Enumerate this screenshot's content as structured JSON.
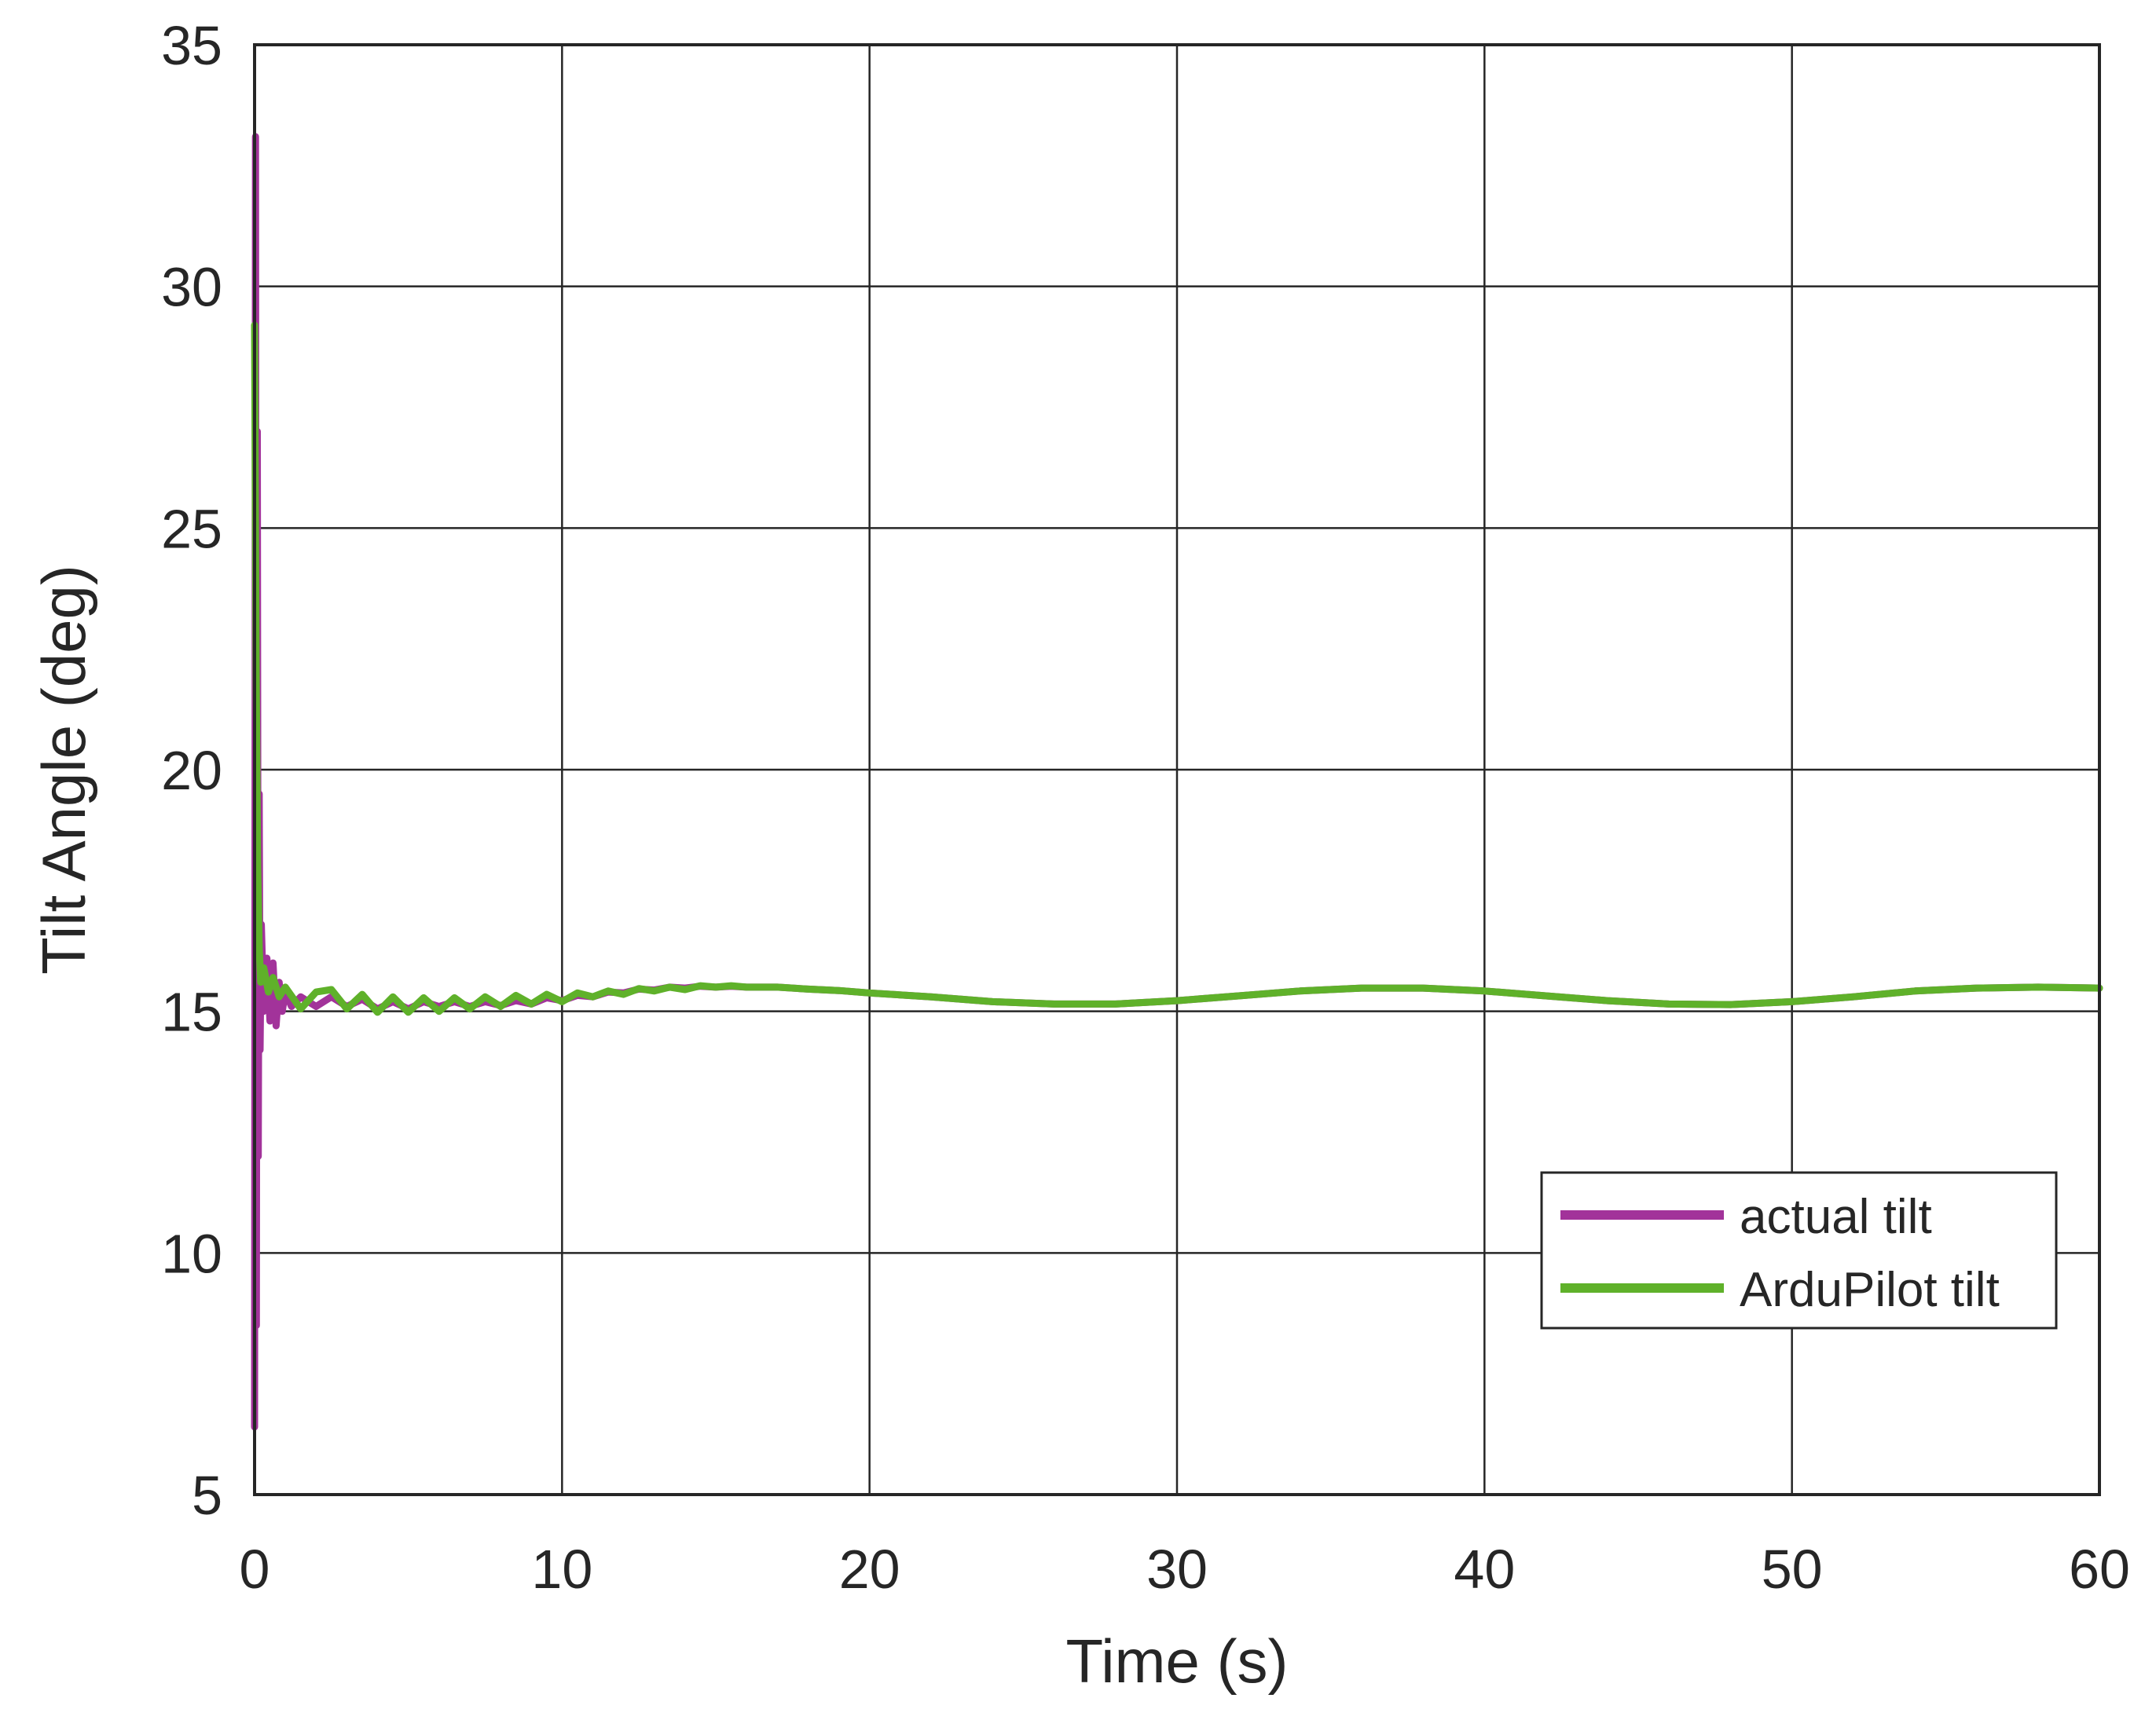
{
  "chart_data": {
    "type": "line",
    "title": "",
    "xlabel": "Time (s)",
    "ylabel": "Tilt Angle (deg)",
    "xlim": [
      0,
      60
    ],
    "ylim": [
      5,
      35
    ],
    "xticks": [
      "0",
      "10",
      "20",
      "30",
      "40",
      "50",
      "60"
    ],
    "yticks": [
      "5",
      "10",
      "15",
      "20",
      "25",
      "30",
      "35"
    ],
    "grid": true,
    "legend": {
      "placement": "lower-right"
    },
    "series": [
      {
        "name": "actual tilt",
        "color": "#a2339a",
        "x": [
          0,
          0.03,
          0.06,
          0.09,
          0.12,
          0.15,
          0.18,
          0.22,
          0.3,
          0.4,
          0.5,
          0.6,
          0.7,
          0.8,
          0.9,
          1.0,
          1.2,
          1.5,
          2.0,
          2.5,
          3.0,
          3.5,
          4.0,
          4.5,
          5.0,
          5.5,
          6.0,
          6.5,
          7.0,
          7.5,
          8.0,
          8.5,
          9.0,
          9.5,
          10.0,
          10.5,
          11.0,
          11.5,
          12.0,
          12.5,
          13.0,
          13.5,
          14.0,
          14.5,
          15.0,
          15.5,
          16.0,
          17.0,
          18.0,
          19.0,
          20.0,
          22.0,
          24.0,
          26.0,
          28.0,
          30.0,
          32.0,
          34.0,
          36.0,
          38.0,
          40.0,
          42.0,
          44.0,
          46.0,
          48.0,
          50.0,
          52.0,
          54.0,
          56.0,
          58.0,
          60.0
        ],
        "y": [
          6.4,
          33.1,
          8.5,
          27.0,
          12.0,
          19.5,
          14.2,
          16.8,
          15.0,
          16.1,
          14.8,
          16.0,
          14.7,
          15.6,
          15.0,
          15.4,
          15.1,
          15.3,
          15.1,
          15.3,
          15.1,
          15.25,
          15.05,
          15.2,
          15.05,
          15.2,
          15.1,
          15.2,
          15.1,
          15.2,
          15.12,
          15.22,
          15.15,
          15.28,
          15.22,
          15.33,
          15.3,
          15.4,
          15.38,
          15.46,
          15.44,
          15.5,
          15.48,
          15.52,
          15.5,
          15.52,
          15.5,
          15.5,
          15.46,
          15.43,
          15.38,
          15.3,
          15.2,
          15.15,
          15.15,
          15.22,
          15.32,
          15.42,
          15.48,
          15.48,
          15.42,
          15.32,
          15.22,
          15.15,
          15.14,
          15.2,
          15.3,
          15.42,
          15.48,
          15.5,
          15.48
        ]
      },
      {
        "name": "ArduPilot tilt",
        "color": "#5fb12a",
        "x": [
          0,
          0.05,
          0.1,
          0.15,
          0.2,
          0.3,
          0.45,
          0.6,
          0.8,
          1.0,
          1.5,
          2.0,
          2.5,
          3.0,
          3.5,
          4.0,
          4.5,
          5.0,
          5.5,
          6.0,
          6.5,
          7.0,
          7.5,
          8.0,
          8.5,
          9.0,
          9.5,
          10.0,
          10.5,
          11.0,
          11.5,
          12.0,
          12.5,
          13.0,
          13.5,
          14.0,
          14.5,
          15.0,
          15.5,
          16.0,
          17.0,
          18.0,
          19.0,
          20.0,
          22.0,
          24.0,
          26.0,
          28.0,
          30.0,
          32.0,
          34.0,
          36.0,
          38.0,
          40.0,
          42.0,
          44.0,
          46.0,
          48.0,
          50.0,
          52.0,
          54.0,
          56.0,
          58.0,
          60.0
        ],
        "y": [
          29.2,
          22.0,
          18.0,
          16.3,
          15.6,
          15.9,
          15.4,
          15.7,
          15.3,
          15.5,
          15.05,
          15.4,
          15.45,
          15.05,
          15.35,
          14.98,
          15.3,
          14.98,
          15.28,
          15.0,
          15.28,
          15.05,
          15.3,
          15.1,
          15.33,
          15.15,
          15.35,
          15.2,
          15.38,
          15.3,
          15.42,
          15.35,
          15.47,
          15.42,
          15.5,
          15.45,
          15.53,
          15.5,
          15.53,
          15.5,
          15.5,
          15.46,
          15.43,
          15.38,
          15.3,
          15.2,
          15.15,
          15.15,
          15.22,
          15.32,
          15.42,
          15.48,
          15.48,
          15.42,
          15.32,
          15.22,
          15.15,
          15.14,
          15.2,
          15.3,
          15.42,
          15.48,
          15.5,
          15.48
        ]
      }
    ]
  }
}
